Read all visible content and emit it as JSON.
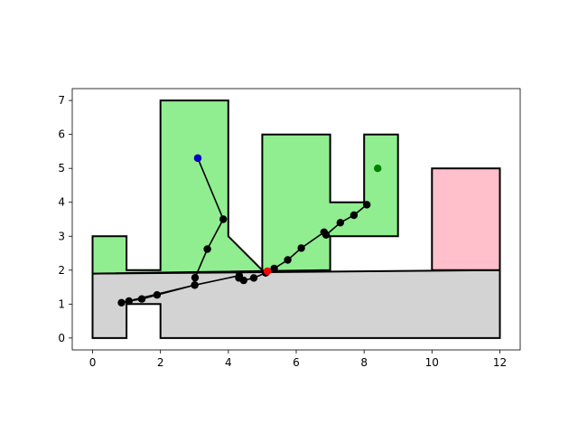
{
  "chart_data": {
    "type": "scatter",
    "title": "",
    "xlabel": "",
    "ylabel": "",
    "xlim": [
      -0.6,
      12.6
    ],
    "ylim": [
      -0.35,
      7.35
    ],
    "grid": false,
    "legend": "none",
    "x_ticks": [
      0,
      2,
      4,
      6,
      8,
      10,
      12
    ],
    "y_ticks": [
      0,
      1,
      2,
      3,
      4,
      5,
      6,
      7
    ],
    "polygons": [
      {
        "name": "region-gray",
        "fill": "#d3d3d3",
        "points": [
          [
            0,
            0
          ],
          [
            1,
            0
          ],
          [
            1,
            1
          ],
          [
            2,
            1
          ],
          [
            2,
            0
          ],
          [
            12,
            0
          ],
          [
            12,
            2
          ],
          [
            0,
            1.9
          ]
        ]
      },
      {
        "name": "region-green",
        "fill": "#90ee90",
        "points": [
          [
            0,
            1.9
          ],
          [
            0,
            3
          ],
          [
            1,
            3
          ],
          [
            1,
            2
          ],
          [
            2,
            2
          ],
          [
            2,
            7
          ],
          [
            4,
            7
          ],
          [
            4,
            3
          ],
          [
            5,
            2
          ],
          [
            5,
            6
          ],
          [
            7,
            6
          ],
          [
            7,
            4
          ],
          [
            8,
            4
          ],
          [
            8,
            6
          ],
          [
            9,
            6
          ],
          [
            9,
            3
          ],
          [
            7,
            3
          ],
          [
            7,
            2
          ]
        ]
      },
      {
        "name": "region-pink",
        "fill": "#ffc0cb",
        "points": [
          [
            10,
            2
          ],
          [
            10,
            5
          ],
          [
            12,
            5
          ],
          [
            12,
            2
          ]
        ]
      }
    ],
    "path": {
      "color": "#000000",
      "points": [
        [
          3.1,
          5.3
        ],
        [
          3.85,
          3.5
        ],
        [
          3.38,
          2.62
        ],
        [
          3.02,
          1.78
        ],
        [
          3.01,
          1.56
        ],
        [
          1.9,
          1.27
        ],
        [
          1.45,
          1.15
        ],
        [
          1.07,
          1.09
        ],
        [
          0.85,
          1.04
        ],
        [
          3.01,
          1.56
        ],
        [
          4.32,
          1.84
        ],
        [
          4.31,
          1.77
        ],
        [
          4.45,
          1.7
        ],
        [
          4.75,
          1.77
        ],
        [
          5.1,
          1.92
        ],
        [
          5.35,
          2.05
        ],
        [
          5.75,
          2.3
        ],
        [
          6.15,
          2.65
        ],
        [
          6.82,
          3.12
        ],
        [
          6.88,
          3.04
        ],
        [
          7.3,
          3.4
        ],
        [
          7.7,
          3.62
        ],
        [
          8.08,
          3.93
        ]
      ]
    },
    "markers": [
      {
        "name": "start-point",
        "x": 3.1,
        "y": 5.3,
        "color": "#0000cc"
      },
      {
        "name": "goal-point",
        "x": 8.4,
        "y": 5.0,
        "color": "#008000"
      },
      {
        "name": "connection-point",
        "x": 5.15,
        "y": 1.97,
        "color": "#ff0000"
      }
    ]
  }
}
